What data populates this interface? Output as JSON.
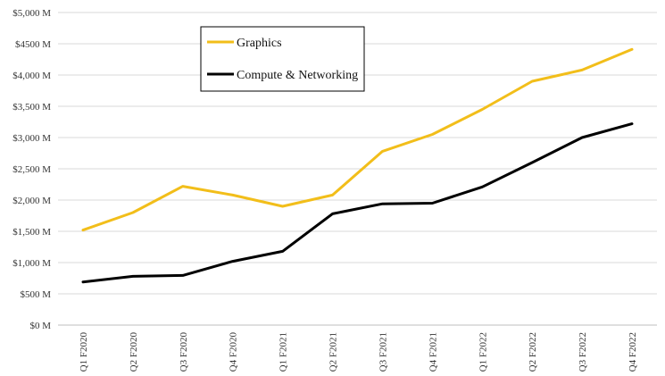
{
  "chart_data": {
    "type": "line",
    "title": "",
    "xlabel": "",
    "ylabel": "",
    "categories": [
      "Q1 F2020",
      "Q2 F2020",
      "Q3 F2020",
      "Q4 F2020",
      "Q1 F2021",
      "Q2 F2021",
      "Q3 F2021",
      "Q4 F2021",
      "Q1 F2022",
      "Q2 F2022",
      "Q3 F2022",
      "Q4 F2022"
    ],
    "y_ticks": [
      {
        "value": 0,
        "label": "$0 M"
      },
      {
        "value": 500,
        "label": "$500 M"
      },
      {
        "value": 1000,
        "label": "$1,000 M"
      },
      {
        "value": 1500,
        "label": "$1,500 M"
      },
      {
        "value": 2000,
        "label": "$2,000 M"
      },
      {
        "value": 2500,
        "label": "$2,500 M"
      },
      {
        "value": 3000,
        "label": "$3,000 M"
      },
      {
        "value": 3500,
        "label": "$3,500 M"
      },
      {
        "value": 4000,
        "label": "$4,000 M"
      },
      {
        "value": 4500,
        "label": "$4500 M"
      },
      {
        "value": 5000,
        "label": "$5,000 M"
      }
    ],
    "ylim": [
      0,
      5000
    ],
    "grid": true,
    "legend_position": "top-left",
    "series": [
      {
        "name": "Graphics",
        "color": "#f2be1a",
        "values": [
          1520,
          1800,
          2220,
          2080,
          1900,
          2080,
          2780,
          3050,
          3450,
          3900,
          4080,
          4410
        ]
      },
      {
        "name": "Compute & Networking",
        "color": "#000000",
        "values": [
          690,
          780,
          795,
          1020,
          1180,
          1780,
          1940,
          1950,
          2210,
          2600,
          3000,
          3220
        ]
      }
    ]
  }
}
